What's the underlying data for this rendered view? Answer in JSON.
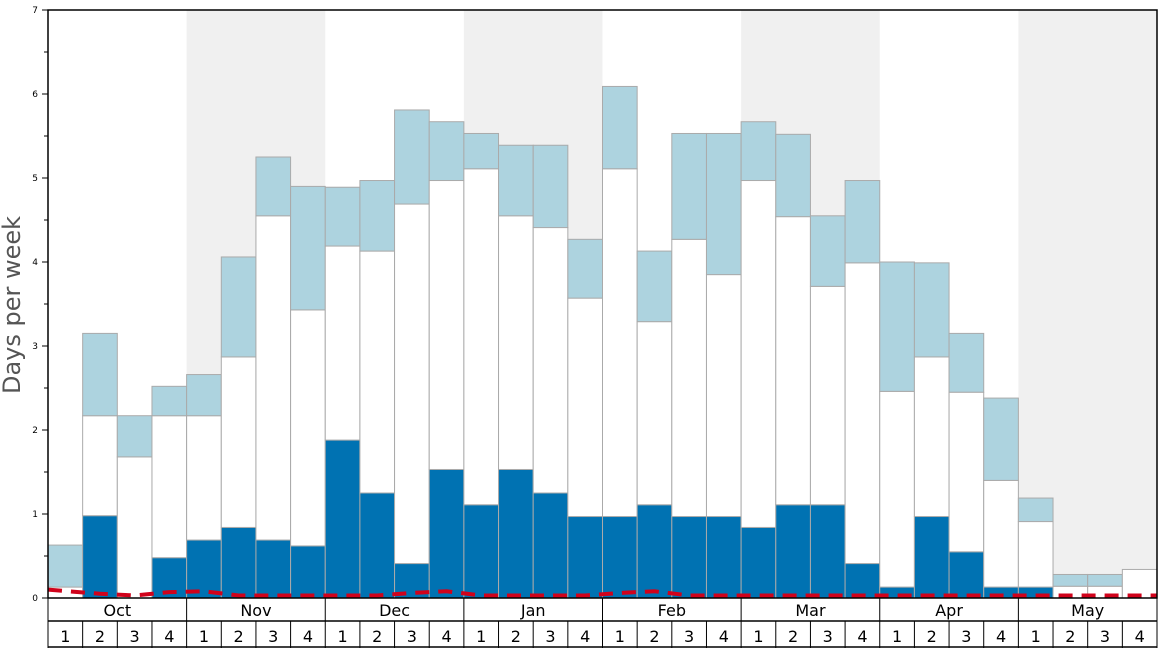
{
  "chart_data": {
    "type": "bar",
    "stacked": true,
    "ylabel": "Days per week",
    "ylim": [
      0,
      7
    ],
    "yticks": [
      "0",
      "1",
      "2",
      "3",
      "4",
      "5",
      "6",
      "7"
    ],
    "months": [
      "Oct",
      "Nov",
      "Dec",
      "Jan",
      "Feb",
      "Mar",
      "Apr",
      "May"
    ],
    "week_labels": [
      "1",
      "2",
      "3",
      "4",
      "1",
      "2",
      "3",
      "4",
      "1",
      "2",
      "3",
      "4",
      "1",
      "2",
      "3",
      "4",
      "1",
      "2",
      "3",
      "4",
      "1",
      "2",
      "3",
      "4",
      "1",
      "2",
      "3",
      "4",
      "1",
      "2",
      "3",
      "4"
    ],
    "colors": {
      "dark": "#0072b2",
      "mid": "#ffffff",
      "light": "#add3df",
      "band": "#f0f0f0",
      "trend": "#d0021b",
      "bar_edge": "#aaaaaa"
    },
    "series": [
      {
        "name": "dark",
        "values": [
          0,
          0.98,
          0,
          0.48,
          0.69,
          0.84,
          0.69,
          0.62,
          1.88,
          1.25,
          0.41,
          1.53,
          1.11,
          1.53,
          1.25,
          0.97,
          0.97,
          1.11,
          0.97,
          0.97,
          0.84,
          1.11,
          1.11,
          0.41,
          0.13,
          0.97,
          0.55,
          0.13,
          0.13,
          0,
          0,
          0
        ]
      },
      {
        "name": "mid",
        "values": [
          0.13,
          1.19,
          1.68,
          1.69,
          1.48,
          2.03,
          3.86,
          2.81,
          2.31,
          2.88,
          4.28,
          3.44,
          4.0,
          3.02,
          3.16,
          2.6,
          4.14,
          2.18,
          3.3,
          2.88,
          4.13,
          3.43,
          2.6,
          3.58,
          2.33,
          1.9,
          1.9,
          1.27,
          0.78,
          0.14,
          0.14,
          0.34
        ]
      },
      {
        "name": "light",
        "values": [
          0.5,
          0.98,
          0.49,
          0.35,
          0.49,
          1.19,
          0.7,
          1.47,
          0.7,
          0.84,
          1.12,
          0.7,
          0.42,
          0.84,
          0.98,
          0.7,
          0.98,
          0.84,
          1.26,
          1.68,
          0.7,
          0.98,
          0.84,
          0.98,
          1.54,
          1.12,
          0.7,
          0.98,
          0.28,
          0.14,
          0.14,
          0
        ]
      }
    ],
    "trend": [
      0.1,
      0.05,
      0.03,
      0.07,
      0.08,
      0.03,
      0.03,
      0.03,
      0.03,
      0.03,
      0.06,
      0.08,
      0.03,
      0.03,
      0.03,
      0.03,
      0.06,
      0.08,
      0.03,
      0.03,
      0.03,
      0.03,
      0.03,
      0.03,
      0.03,
      0.03,
      0.03,
      0.03,
      0.03,
      0.03,
      0.03,
      0.03
    ]
  }
}
